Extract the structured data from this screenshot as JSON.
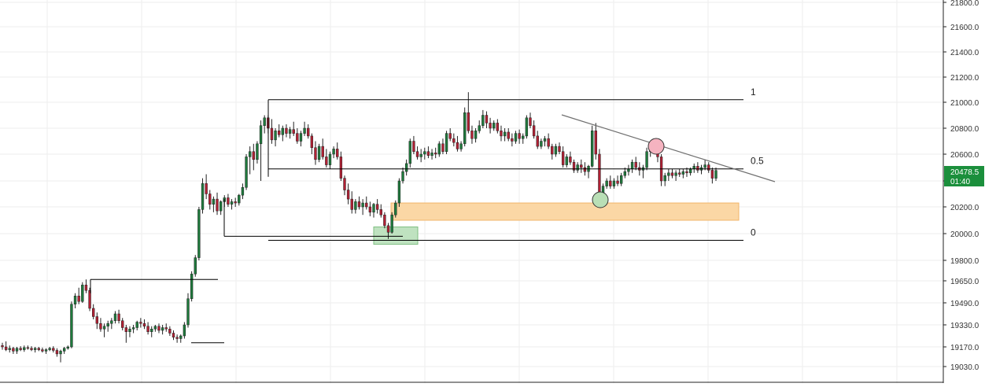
{
  "colors": {
    "bull": "#1e7a3c",
    "bear": "#b22034",
    "wick": "#222222",
    "grid": "#eeeeee",
    "axis_text": "#333333",
    "line": "#000000",
    "trend": "#6f6f6f",
    "orange_zone": "#fbd7a5",
    "orange_border": "#f2b56a",
    "green_zone": "#bfe2c0",
    "green_border": "#7fbf82",
    "red_circle": "#f5b3c0",
    "green_circle": "#b9dfb6",
    "price_tag": "#1b8f3c"
  },
  "chart_data": {
    "type": "candlestick",
    "title": "",
    "xlabel": "",
    "ylabel": "",
    "ylim": [
      18960,
      21820
    ],
    "grid": true,
    "y_ticks": [
      "21800.0",
      "21600.0",
      "21400.0",
      "21200.0",
      "21000.0",
      "20800.0",
      "20600.0",
      "20400.0",
      "20200.0",
      "20000.0",
      "19800.0",
      "19650.0",
      "19490.0",
      "19330.0",
      "19170.0",
      "19030.0"
    ],
    "y_tick_values": [
      21800,
      21600,
      21400,
      21200,
      21000,
      20800,
      20600,
      20400,
      20200,
      20000,
      19800,
      19650,
      19490,
      19330,
      19170,
      19030
    ],
    "last_price": "20478.5",
    "countdown": "01:40",
    "candles": [
      [
        19180,
        19200,
        19150,
        19170
      ],
      [
        19170,
        19210,
        19140,
        19150
      ],
      [
        19150,
        19180,
        19130,
        19160
      ],
      [
        19160,
        19170,
        19120,
        19140
      ],
      [
        19140,
        19170,
        19120,
        19160
      ],
      [
        19160,
        19175,
        19140,
        19150
      ],
      [
        19150,
        19180,
        19135,
        19165
      ],
      [
        19165,
        19180,
        19150,
        19160
      ],
      [
        19160,
        19175,
        19140,
        19150
      ],
      [
        19150,
        19170,
        19130,
        19160
      ],
      [
        19160,
        19170,
        19140,
        19150
      ],
      [
        19150,
        19165,
        19130,
        19140
      ],
      [
        19140,
        19160,
        19120,
        19150
      ],
      [
        19150,
        19170,
        19140,
        19160
      ],
      [
        19160,
        19175,
        19130,
        19145
      ],
      [
        19145,
        19160,
        19100,
        19120
      ],
      [
        19120,
        19150,
        19060,
        19140
      ],
      [
        19140,
        19170,
        19120,
        19160
      ],
      [
        19160,
        19180,
        19150,
        19170
      ],
      [
        19170,
        19500,
        19160,
        19480
      ],
      [
        19480,
        19560,
        19450,
        19540
      ],
      [
        19540,
        19600,
        19480,
        19500
      ],
      [
        19500,
        19640,
        19490,
        19620
      ],
      [
        19620,
        19660,
        19560,
        19580
      ],
      [
        19580,
        19600,
        19430,
        19450
      ],
      [
        19450,
        19480,
        19370,
        19390
      ],
      [
        19390,
        19420,
        19300,
        19340
      ],
      [
        19340,
        19380,
        19280,
        19300
      ],
      [
        19300,
        19340,
        19240,
        19320
      ],
      [
        19320,
        19360,
        19280,
        19340
      ],
      [
        19340,
        19380,
        19300,
        19360
      ],
      [
        19360,
        19430,
        19340,
        19410
      ],
      [
        19410,
        19440,
        19340,
        19360
      ],
      [
        19360,
        19380,
        19290,
        19310
      ],
      [
        19310,
        19330,
        19200,
        19280
      ],
      [
        19280,
        19320,
        19240,
        19300
      ],
      [
        19300,
        19330,
        19270,
        19310
      ],
      [
        19310,
        19360,
        19290,
        19350
      ],
      [
        19350,
        19380,
        19310,
        19340
      ],
      [
        19340,
        19370,
        19300,
        19320
      ],
      [
        19320,
        19350,
        19260,
        19280
      ],
      [
        19280,
        19320,
        19240,
        19300
      ],
      [
        19300,
        19330,
        19280,
        19320
      ],
      [
        19320,
        19340,
        19270,
        19290
      ],
      [
        19290,
        19330,
        19260,
        19310
      ],
      [
        19310,
        19340,
        19280,
        19300
      ],
      [
        19300,
        19320,
        19250,
        19270
      ],
      [
        19270,
        19290,
        19220,
        19240
      ],
      [
        19240,
        19260,
        19200,
        19230
      ],
      [
        19230,
        19260,
        19200,
        19250
      ],
      [
        19250,
        19350,
        19230,
        19330
      ],
      [
        19330,
        19560,
        19310,
        19520
      ],
      [
        19520,
        19720,
        19500,
        19700
      ],
      [
        19700,
        19840,
        19680,
        19820
      ],
      [
        19820,
        20200,
        19800,
        20180
      ],
      [
        20180,
        20420,
        20150,
        20380
      ],
      [
        20380,
        20450,
        20260,
        20300
      ],
      [
        20300,
        20330,
        20180,
        20220
      ],
      [
        20220,
        20280,
        20160,
        20260
      ],
      [
        20260,
        20310,
        20140,
        20170
      ],
      [
        20170,
        20250,
        20140,
        20240
      ],
      [
        20240,
        20290,
        20200,
        20270
      ],
      [
        20270,
        20300,
        20200,
        20220
      ],
      [
        20220,
        20260,
        20180,
        20240
      ],
      [
        20240,
        20270,
        20200,
        20230
      ],
      [
        20230,
        20300,
        20210,
        20290
      ],
      [
        20290,
        20380,
        20260,
        20350
      ],
      [
        20350,
        20600,
        20330,
        20580
      ],
      [
        20580,
        20660,
        20450,
        20620
      ],
      [
        20620,
        20680,
        20480,
        20560
      ],
      [
        20560,
        20700,
        20530,
        20680
      ],
      [
        20680,
        20860,
        20400,
        20820
      ],
      [
        20820,
        20900,
        20760,
        20880
      ],
      [
        20880,
        20900,
        20760,
        20800
      ],
      [
        20800,
        20870,
        20680,
        20710
      ],
      [
        20710,
        20800,
        20660,
        20780
      ],
      [
        20780,
        20830,
        20730,
        20750
      ],
      [
        20750,
        20820,
        20700,
        20800
      ],
      [
        20800,
        20830,
        20730,
        20760
      ],
      [
        20760,
        20810,
        20720,
        20790
      ],
      [
        20790,
        20850,
        20740,
        20760
      ],
      [
        20760,
        20800,
        20680,
        20700
      ],
      [
        20700,
        20780,
        20660,
        20760
      ],
      [
        20760,
        20850,
        20740,
        20800
      ],
      [
        20800,
        20830,
        20720,
        20740
      ],
      [
        20740,
        20760,
        20600,
        20650
      ],
      [
        20650,
        20700,
        20520,
        20560
      ],
      [
        20560,
        20680,
        20540,
        20660
      ],
      [
        20660,
        20720,
        20560,
        20580
      ],
      [
        20580,
        20640,
        20500,
        20520
      ],
      [
        20520,
        20620,
        20490,
        20600
      ],
      [
        20600,
        20660,
        20570,
        20640
      ],
      [
        20640,
        20690,
        20560,
        20580
      ],
      [
        20580,
        20620,
        20400,
        20420
      ],
      [
        20420,
        20440,
        20290,
        20330
      ],
      [
        20330,
        20380,
        20220,
        20260
      ],
      [
        20260,
        20320,
        20150,
        20180
      ],
      [
        20180,
        20260,
        20150,
        20240
      ],
      [
        20240,
        20280,
        20180,
        20200
      ],
      [
        20200,
        20260,
        20140,
        20230
      ],
      [
        20230,
        20280,
        20180,
        20200
      ],
      [
        20200,
        20240,
        20130,
        20160
      ],
      [
        20160,
        20230,
        20120,
        20220
      ],
      [
        20220,
        20260,
        20150,
        20180
      ],
      [
        20180,
        20220,
        20120,
        20140
      ],
      [
        20140,
        20160,
        20040,
        20060
      ],
      [
        20060,
        20080,
        19960,
        20010
      ],
      [
        20010,
        20160,
        20000,
        20140
      ],
      [
        20140,
        20250,
        20120,
        20230
      ],
      [
        20230,
        20420,
        20200,
        20400
      ],
      [
        20400,
        20500,
        20380,
        20470
      ],
      [
        20470,
        20560,
        20440,
        20530
      ],
      [
        20530,
        20720,
        20500,
        20700
      ],
      [
        20700,
        20740,
        20600,
        20620
      ],
      [
        20620,
        20660,
        20560,
        20580
      ],
      [
        20580,
        20640,
        20540,
        20600
      ],
      [
        20600,
        20650,
        20560,
        20620
      ],
      [
        20620,
        20660,
        20570,
        20590
      ],
      [
        20590,
        20640,
        20560,
        20610
      ],
      [
        20610,
        20650,
        20570,
        20600
      ],
      [
        20600,
        20700,
        20580,
        20680
      ],
      [
        20680,
        20720,
        20600,
        20620
      ],
      [
        20620,
        20780,
        20600,
        20760
      ],
      [
        20760,
        20800,
        20700,
        20720
      ],
      [
        20720,
        20760,
        20660,
        20690
      ],
      [
        20690,
        20740,
        20620,
        20640
      ],
      [
        20640,
        20700,
        20620,
        20680
      ],
      [
        20680,
        20960,
        20660,
        20920
      ],
      [
        20920,
        21080,
        20760,
        20780
      ],
      [
        20780,
        20820,
        20680,
        20720
      ],
      [
        20720,
        20800,
        20690,
        20780
      ],
      [
        20780,
        20860,
        20760,
        20820
      ],
      [
        20820,
        20940,
        20800,
        20900
      ],
      [
        20900,
        20930,
        20800,
        20840
      ],
      [
        20840,
        20880,
        20760,
        20800
      ],
      [
        20800,
        20860,
        20780,
        20840
      ],
      [
        20840,
        20870,
        20760,
        20780
      ],
      [
        20780,
        20820,
        20700,
        20740
      ],
      [
        20740,
        20800,
        20700,
        20770
      ],
      [
        20770,
        20800,
        20700,
        20720
      ],
      [
        20720,
        20760,
        20660,
        20700
      ],
      [
        20700,
        20780,
        20680,
        20760
      ],
      [
        20760,
        20790,
        20680,
        20720
      ],
      [
        20720,
        20760,
        20680,
        20740
      ],
      [
        20740,
        20900,
        20720,
        20880
      ],
      [
        20880,
        20920,
        20800,
        20820
      ],
      [
        20820,
        20860,
        20720,
        20740
      ],
      [
        20740,
        20780,
        20640,
        20660
      ],
      [
        20660,
        20720,
        20640,
        20700
      ],
      [
        20700,
        20740,
        20660,
        20720
      ],
      [
        20720,
        20760,
        20640,
        20660
      ],
      [
        20660,
        20680,
        20560,
        20600
      ],
      [
        20600,
        20680,
        20580,
        20660
      ],
      [
        20660,
        20690,
        20600,
        20620
      ],
      [
        20620,
        20660,
        20500,
        20520
      ],
      [
        20520,
        20600,
        20500,
        20580
      ],
      [
        20580,
        20620,
        20520,
        20540
      ],
      [
        20540,
        20560,
        20460,
        20480
      ],
      [
        20480,
        20540,
        20460,
        20520
      ],
      [
        20520,
        20560,
        20460,
        20500
      ],
      [
        20500,
        20540,
        20440,
        20470
      ],
      [
        20470,
        20520,
        20420,
        20510
      ],
      [
        20510,
        20820,
        20500,
        20780
      ],
      [
        20780,
        20840,
        20560,
        20600
      ],
      [
        20600,
        20640,
        20260,
        20300
      ],
      [
        20300,
        20380,
        20240,
        20360
      ],
      [
        20360,
        20420,
        20340,
        20400
      ],
      [
        20400,
        20440,
        20340,
        20360
      ],
      [
        20360,
        20420,
        20340,
        20400
      ],
      [
        20400,
        20440,
        20360,
        20380
      ],
      [
        20380,
        20460,
        20360,
        20440
      ],
      [
        20440,
        20500,
        20420,
        20470
      ],
      [
        20470,
        20520,
        20440,
        20490
      ],
      [
        20490,
        20560,
        20460,
        20540
      ],
      [
        20540,
        20580,
        20480,
        20500
      ],
      [
        20500,
        20540,
        20440,
        20480
      ],
      [
        20480,
        20520,
        20420,
        20500
      ],
      [
        20500,
        20650,
        20480,
        20620
      ],
      [
        20620,
        20700,
        20580,
        20660
      ],
      [
        20660,
        20700,
        20600,
        20630
      ],
      [
        20630,
        20660,
        20540,
        20580
      ],
      [
        20580,
        20600,
        20360,
        20400
      ],
      [
        20400,
        20460,
        20360,
        20440
      ],
      [
        20440,
        20490,
        20400,
        20460
      ],
      [
        20460,
        20490,
        20420,
        20440
      ],
      [
        20440,
        20480,
        20400,
        20460
      ],
      [
        20460,
        20490,
        20430,
        20450
      ],
      [
        20450,
        20490,
        20420,
        20470
      ],
      [
        20470,
        20500,
        20430,
        20460
      ],
      [
        20460,
        20500,
        20440,
        20490
      ],
      [
        20490,
        20530,
        20460,
        20510
      ],
      [
        20510,
        20540,
        20460,
        20480
      ],
      [
        20480,
        20520,
        20450,
        20500
      ],
      [
        20500,
        20560,
        20480,
        20520
      ],
      [
        20520,
        20540,
        20460,
        20480
      ],
      [
        20480,
        20500,
        20380,
        20420
      ],
      [
        20420,
        20500,
        20400,
        20478
      ]
    ],
    "annotations": {
      "fib_labels": [
        "1",
        "0.5",
        "0"
      ],
      "fib_levels": [
        21020,
        20490,
        19950
      ],
      "upper_range_top": 21020,
      "range_mid": 20490,
      "range_bottom": 19950,
      "orange_zone": [
        20100,
        20230
      ],
      "green_zone": [
        19920,
        20050
      ],
      "trendline": [
        [
          20895,
          20390
        ]
      ],
      "lower_box_top": 19660,
      "lower_box_bottom": 19200,
      "swing_low_line": 19980
    }
  }
}
